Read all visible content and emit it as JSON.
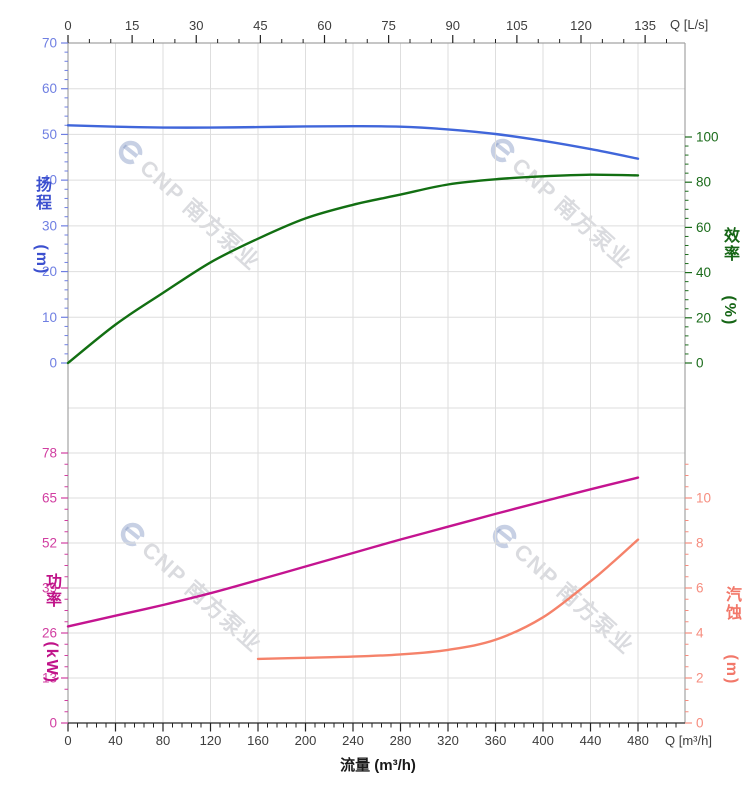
{
  "watermark": {
    "text": "CNP 南方泵业"
  },
  "chart_data": {
    "type": "line",
    "title": "",
    "grid": true,
    "legend": "none",
    "x_axis_bottom": {
      "title": "流量 (m³/h)",
      "unit_label": "Q [m³/h]",
      "min": 0,
      "max": 520,
      "major_ticks": [
        0,
        40,
        80,
        120,
        160,
        200,
        240,
        280,
        320,
        360,
        400,
        440,
        480
      ],
      "minor_step": 8,
      "tick_label_color": "#3d3d3d"
    },
    "x_axis_top": {
      "unit_label": "Q [L/s]",
      "min": 0,
      "max": 144.4,
      "major_ticks": [
        0,
        15,
        30,
        45,
        60,
        75,
        90,
        105,
        120,
        135
      ],
      "minor_step": 5,
      "tick_label_color": "#3d3d3d",
      "ls_to_m3h": 3.6
    },
    "panels": [
      {
        "id": "head-efficiency",
        "left_axis": {
          "title": "扬程 (m)",
          "min": 0,
          "max": 70,
          "major_ticks": [
            0,
            10,
            20,
            30,
            40,
            50,
            60,
            70
          ],
          "minor_step": 2,
          "label_color": "#6f7fe2",
          "title_color": "#3c50cf"
        },
        "right_axis": {
          "title": "效率 (%)",
          "min": 0,
          "max": 100,
          "major_ticks": [
            0,
            20,
            40,
            60,
            80,
            100
          ],
          "minor_step": 4,
          "label_color": "#1a6b1a",
          "title_color": "#156515"
        },
        "series": [
          {
            "name": "head",
            "label": "扬程",
            "axis": "left",
            "color": "#4066da",
            "points": [
              [
                0,
                52
              ],
              [
                40,
                51.7
              ],
              [
                80,
                51.5
              ],
              [
                120,
                51.5
              ],
              [
                160,
                51.6
              ],
              [
                200,
                51.75
              ],
              [
                240,
                51.8
              ],
              [
                280,
                51.7
              ],
              [
                320,
                51.1
              ],
              [
                360,
                50.1
              ],
              [
                400,
                48.6
              ],
              [
                440,
                46.8
              ],
              [
                480,
                44.7
              ]
            ]
          },
          {
            "name": "efficiency",
            "label": "效率",
            "axis": "right",
            "color": "#126f12",
            "points": [
              [
                0,
                0
              ],
              [
                40,
                17
              ],
              [
                80,
                31
              ],
              [
                120,
                44.5
              ],
              [
                160,
                55
              ],
              [
                200,
                64
              ],
              [
                240,
                70
              ],
              [
                280,
                74.5
              ],
              [
                320,
                79
              ],
              [
                360,
                81.3
              ],
              [
                400,
                82.6
              ],
              [
                440,
                83.3
              ],
              [
                480,
                83
              ]
            ]
          }
        ]
      },
      {
        "id": "power-npsh",
        "left_axis": {
          "title": "功率 (kW)",
          "min": 0,
          "max": 78,
          "major_ticks": [
            0,
            13,
            26,
            39,
            52,
            65,
            78
          ],
          "minor_step": 3.25,
          "label_color": "#d13ea1",
          "title_color": "#c01389"
        },
        "right_axis": {
          "title": "汽蚀 (m)",
          "min": 0,
          "max": 12,
          "major_ticks": [
            0,
            2,
            4,
            6,
            8,
            10
          ],
          "minor_step": 0.5,
          "label_color": "#f68d7f",
          "title_color": "#f2786a"
        },
        "series": [
          {
            "name": "power",
            "label": "功率",
            "axis": "left",
            "color": "#c41490",
            "points": [
              [
                0,
                27.9
              ],
              [
                40,
                31
              ],
              [
                80,
                34.1
              ],
              [
                120,
                37.5
              ],
              [
                160,
                41.3
              ],
              [
                200,
                45.2
              ],
              [
                240,
                49.1
              ],
              [
                280,
                53
              ],
              [
                320,
                56.7
              ],
              [
                360,
                60.4
              ],
              [
                400,
                64
              ],
              [
                440,
                67.5
              ],
              [
                480,
                70.9
              ]
            ]
          },
          {
            "name": "npsh",
            "label": "汽蚀",
            "axis": "right",
            "color": "#f5826a",
            "points": [
              [
                160,
                2.85
              ],
              [
                200,
                2.9
              ],
              [
                240,
                2.95
              ],
              [
                280,
                3.05
              ],
              [
                320,
                3.25
              ],
              [
                360,
                3.7
              ],
              [
                400,
                4.7
              ],
              [
                440,
                6.3
              ],
              [
                460,
                7.2
              ],
              [
                480,
                8.15
              ]
            ]
          }
        ]
      }
    ]
  }
}
